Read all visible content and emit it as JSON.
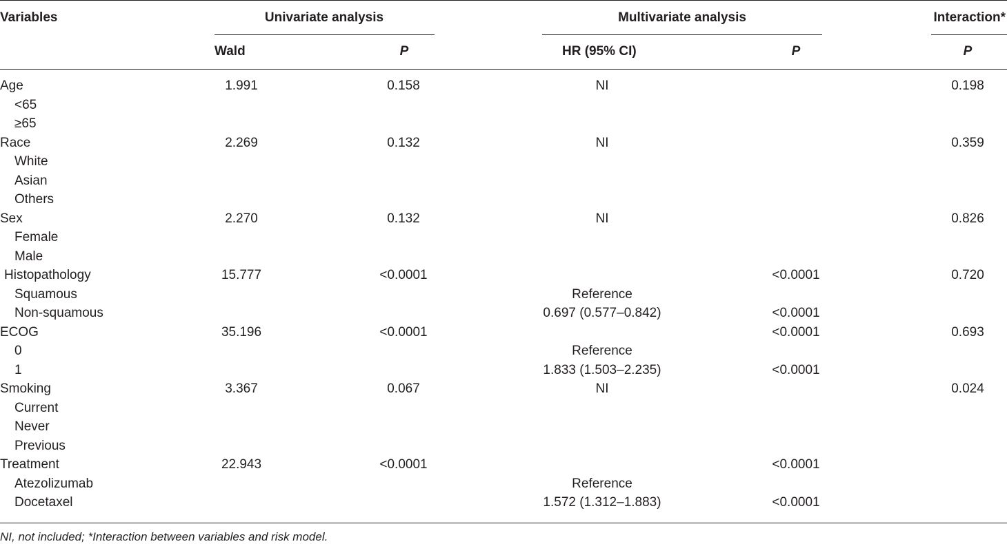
{
  "headers": {
    "variables": "Variables",
    "univariate": "Univariate analysis",
    "multivariate": "Multivariate analysis",
    "interaction": "Interaction*",
    "wald": "Wald",
    "p": "P",
    "hr": "HR (95% CI)"
  },
  "rows": [
    {
      "label": "Age",
      "indent": false,
      "wald": "1.991",
      "p_uni": "0.158",
      "hr": "NI",
      "p_multi": "",
      "p_int": "0.198"
    },
    {
      "label": "<65",
      "indent": true,
      "wald": "",
      "p_uni": "",
      "hr": "",
      "p_multi": "",
      "p_int": ""
    },
    {
      "label": "≥65",
      "indent": true,
      "wald": "",
      "p_uni": "",
      "hr": "",
      "p_multi": "",
      "p_int": ""
    },
    {
      "label": "Race",
      "indent": false,
      "wald": "2.269",
      "p_uni": "0.132",
      "hr": "NI",
      "p_multi": "",
      "p_int": "0.359"
    },
    {
      "label": "White",
      "indent": true,
      "wald": "",
      "p_uni": "",
      "hr": "",
      "p_multi": "",
      "p_int": ""
    },
    {
      "label": "Asian",
      "indent": true,
      "wald": "",
      "p_uni": "",
      "hr": "",
      "p_multi": "",
      "p_int": ""
    },
    {
      "label": "Others",
      "indent": true,
      "wald": "",
      "p_uni": "",
      "hr": "",
      "p_multi": "",
      "p_int": ""
    },
    {
      "label": "Sex",
      "indent": false,
      "wald": "2.270",
      "p_uni": "0.132",
      "hr": "NI",
      "p_multi": "",
      "p_int": "0.826"
    },
    {
      "label": "Female",
      "indent": true,
      "wald": "",
      "p_uni": "",
      "hr": "",
      "p_multi": "",
      "p_int": ""
    },
    {
      "label": "Male",
      "indent": true,
      "wald": "",
      "p_uni": "",
      "hr": "",
      "p_multi": "",
      "p_int": ""
    },
    {
      "label": "Histopathology",
      "indent": false,
      "wald": "15.777",
      "p_uni": "<0.0001",
      "hr": "",
      "p_multi": "<0.0001",
      "p_int": "0.720"
    },
    {
      "label": "Squamous",
      "indent": true,
      "wald": "",
      "p_uni": "",
      "hr": "Reference",
      "p_multi": "",
      "p_int": ""
    },
    {
      "label": "Non-squamous",
      "indent": true,
      "wald": "",
      "p_uni": "",
      "hr": "0.697 (0.577–0.842)",
      "p_multi": "<0.0001",
      "p_int": ""
    },
    {
      "label": "ECOG",
      "indent": false,
      "wald": "35.196",
      "p_uni": "<0.0001",
      "hr": "",
      "p_multi": "<0.0001",
      "p_int": "0.693"
    },
    {
      "label": "0",
      "indent": true,
      "wald": "",
      "p_uni": "",
      "hr": "Reference",
      "p_multi": "",
      "p_int": ""
    },
    {
      "label": "1",
      "indent": true,
      "wald": "",
      "p_uni": "",
      "hr": "1.833 (1.503–2.235)",
      "p_multi": "<0.0001",
      "p_int": ""
    },
    {
      "label": "Smoking",
      "indent": false,
      "wald": "3.367",
      "p_uni": "0.067",
      "hr": "NI",
      "p_multi": "",
      "p_int": "0.024"
    },
    {
      "label": "Current",
      "indent": true,
      "wald": "",
      "p_uni": "",
      "hr": "",
      "p_multi": "",
      "p_int": ""
    },
    {
      "label": "Never",
      "indent": true,
      "wald": "",
      "p_uni": "",
      "hr": "",
      "p_multi": "",
      "p_int": ""
    },
    {
      "label": "Previous",
      "indent": true,
      "wald": "",
      "p_uni": "",
      "hr": "",
      "p_multi": "",
      "p_int": ""
    },
    {
      "label": "Treatment",
      "indent": false,
      "wald": "22.943",
      "p_uni": "<0.0001",
      "hr": "",
      "p_multi": "<0.0001",
      "p_int": ""
    },
    {
      "label": "Atezolizumab",
      "indent": true,
      "wald": "",
      "p_uni": "",
      "hr": "Reference",
      "p_multi": "",
      "p_int": ""
    },
    {
      "label": "Docetaxel",
      "indent": true,
      "wald": "",
      "p_uni": "",
      "hr": "1.572 (1.312–1.883)",
      "p_multi": "<0.0001",
      "p_int": ""
    }
  ],
  "footnote": "NI, not included; *Interaction between variables and risk model."
}
